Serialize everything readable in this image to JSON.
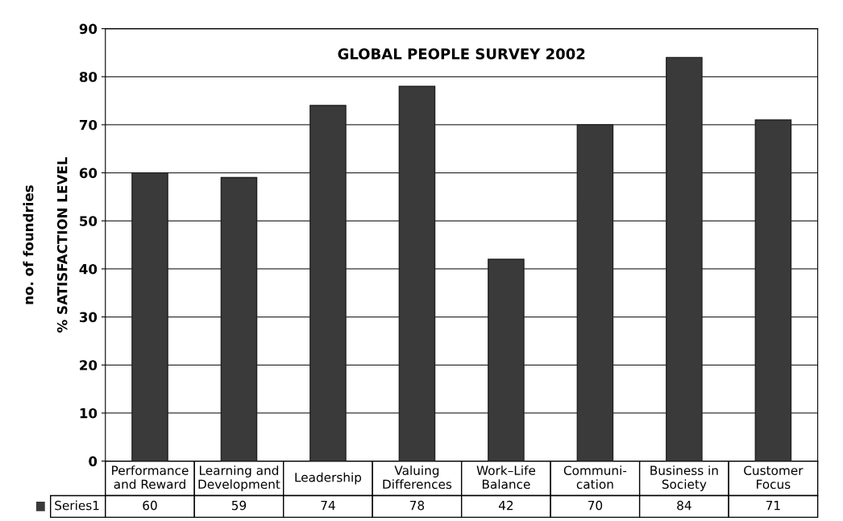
{
  "chart_data": {
    "type": "bar",
    "title": "GLOBAL PEOPLE SURVEY 2002",
    "ylabel": "% SATISFACTION LEVEL",
    "annotations": [
      "no. of foundries"
    ],
    "categories": [
      "Performance\nand Reward",
      "Learning and\nDevelopment",
      "Leadership",
      "Valuing\nDifferences",
      "Work–Life\nBalance",
      "Communi-\ncation",
      "Business in\nSociety",
      "Customer\nFocus"
    ],
    "series": [
      {
        "name": "Series1",
        "color": "#3a3a3a",
        "values": [
          60,
          59,
          74,
          78,
          42,
          70,
          84,
          71
        ]
      }
    ],
    "ylim": [
      0,
      90
    ],
    "yticks": [
      0,
      10,
      20,
      30,
      40,
      50,
      60,
      70,
      80,
      90
    ],
    "grid": "y",
    "data_labels": true
  }
}
